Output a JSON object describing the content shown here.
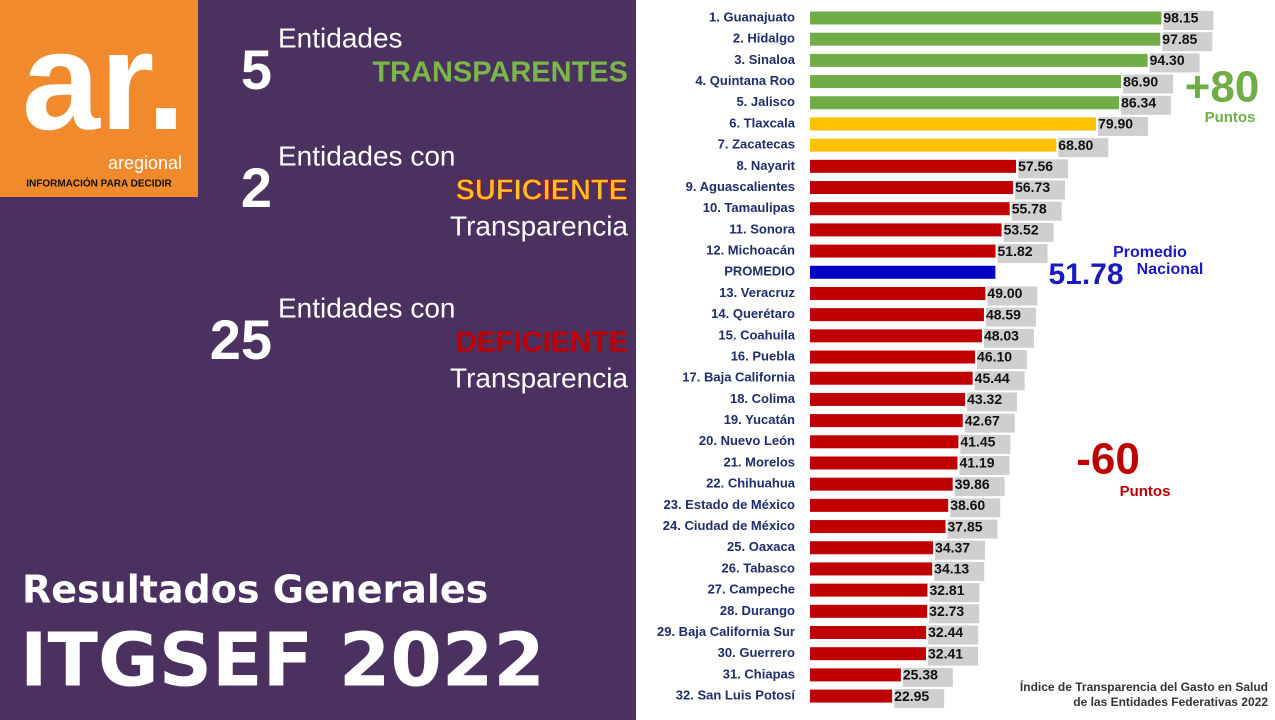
{
  "logo": {
    "mark": "ar.",
    "name": "aregional",
    "tagline": "INFORMACIÓN PARA DECIDIR"
  },
  "summary": [
    {
      "count": "5",
      "text": "Entidades",
      "highlight": "TRANSPARENTES",
      "color": "#7ab648"
    },
    {
      "count": "2",
      "text": "Entidades con",
      "highlight": "SUFICIENTE",
      "after": "Transparencia",
      "color": "#f5c02a"
    },
    {
      "count": "25",
      "text": "Entidades con",
      "highlight": "DEFICIENTE",
      "after": "Transparencia",
      "color": "#c00000"
    }
  ],
  "footer": {
    "subtitle": "Resultados Generales",
    "title": "ITGSEF 2022"
  },
  "chart_data": {
    "type": "hbar",
    "categories": [
      "1. Guanajuato",
      "2. Hidalgo",
      "3. Sinaloa",
      "4. Quintana Roo",
      "5. Jalisco",
      "6. Tlaxcala",
      "7. Zacatecas",
      "8. Nayarit",
      "9. Aguascalientes",
      "10. Tamaulipas",
      "11. Sonora",
      "12. Michoacán",
      "PROMEDIO",
      "13. Veracruz",
      "14. Querétaro",
      "15. Coahuila",
      "16. Puebla",
      "17. Baja California",
      "18. Colima",
      "19. Yucatán",
      "20. Nuevo León",
      "21. Morelos",
      "22. Chihuahua",
      "23. Estado de México",
      "24. Ciudad de México",
      "25. Oaxaca",
      "26. Tabasco",
      "27. Campeche",
      "28. Durango",
      "29. Baja California Sur",
      "30. Guerrero",
      "31. Chiapas",
      "32. San Luis Potosí"
    ],
    "values": [
      98.15,
      97.85,
      94.3,
      86.9,
      86.34,
      79.9,
      68.8,
      57.56,
      56.73,
      55.78,
      53.52,
      51.82,
      51.78,
      49,
      48.59,
      48.03,
      46.1,
      45.44,
      43.32,
      42.67,
      41.45,
      41.19,
      39.86,
      38.6,
      37.85,
      34.37,
      34.13,
      32.81,
      32.73,
      32.44,
      32.41,
      25.38,
      22.95
    ],
    "value_labels": [
      "98.15",
      "97.85",
      "94.30",
      "86.90",
      "86.34",
      "79.90",
      "68.80",
      "57.56",
      "56.73",
      "55.78",
      "53.52",
      "51.82",
      "51.78",
      "49.00",
      "48.59",
      "48.03",
      "46.10",
      "45.44",
      "43.32",
      "42.67",
      "41.45",
      "41.19",
      "39.86",
      "38.60",
      "37.85",
      "34.37",
      "34.13",
      "32.81",
      "32.73",
      "32.44",
      "32.41",
      "25.38",
      "22.95"
    ],
    "colors": [
      "#70ad47",
      "#70ad47",
      "#70ad47",
      "#70ad47",
      "#70ad47",
      "#ffc000",
      "#ffc000",
      "#c00000",
      "#c00000",
      "#c00000",
      "#c00000",
      "#c00000",
      "#0000c0",
      "#c00000",
      "#c00000",
      "#c00000",
      "#c00000",
      "#c00000",
      "#c00000",
      "#c00000",
      "#c00000",
      "#c00000",
      "#c00000",
      "#c00000",
      "#c00000",
      "#c00000",
      "#c00000",
      "#c00000",
      "#c00000",
      "#c00000",
      "#c00000",
      "#c00000",
      "#c00000"
    ],
    "xlim": [
      0,
      100
    ],
    "annotations": [
      {
        "text": "+80",
        "note": "Puntos",
        "color": "#70ad47"
      },
      {
        "text": "Promedio",
        "note": "Nacional",
        "color": "#1a1ac0"
      },
      {
        "text": "-60",
        "note": "Puntos",
        "color": "#c00000"
      }
    ],
    "source": [
      "Índice de Transparencia del Gasto en Salud",
      "de las Entidades Federativas 2022"
    ]
  }
}
